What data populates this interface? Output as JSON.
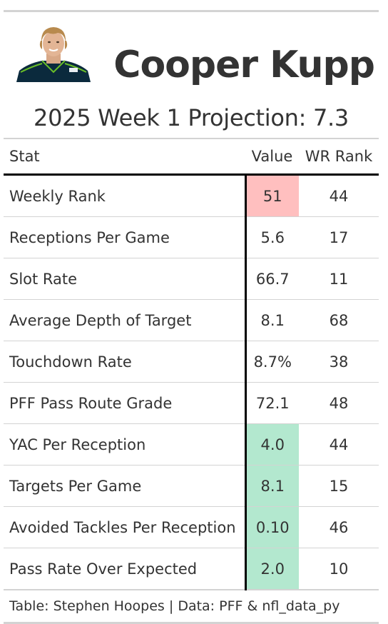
{
  "header": {
    "player_name": "Cooper Kupp",
    "headshot_icon": "player-headshot-icon",
    "subtitle": "2025 Week 1 Projection: 7.3"
  },
  "table": {
    "columns": [
      "Stat",
      "Value",
      "WR Rank"
    ],
    "rows": [
      {
        "stat": "Weekly Rank",
        "value": "51",
        "rank": "44",
        "highlight": "#ffbfbf"
      },
      {
        "stat": "Receptions Per Game",
        "value": "5.6",
        "rank": "17",
        "highlight": null
      },
      {
        "stat": "Slot Rate",
        "value": "66.7",
        "rank": "11",
        "highlight": null
      },
      {
        "stat": "Average Depth of Target",
        "value": "8.1",
        "rank": "68",
        "highlight": null
      },
      {
        "stat": "Touchdown Rate",
        "value": "8.7%",
        "rank": "38",
        "highlight": null
      },
      {
        "stat": "PFF Pass Route Grade",
        "value": "72.1",
        "rank": "48",
        "highlight": null
      },
      {
        "stat": "YAC Per Reception",
        "value": "4.0",
        "rank": "44",
        "highlight": "#b3e8cf"
      },
      {
        "stat": "Targets Per Game",
        "value": "8.1",
        "rank": "15",
        "highlight": "#b3e8cf"
      },
      {
        "stat": "Avoided Tackles Per Reception",
        "value": "0.10",
        "rank": "46",
        "highlight": "#b3e8cf"
      },
      {
        "stat": "Pass Rate Over Expected",
        "value": "2.0",
        "rank": "10",
        "highlight": "#b3e8cf"
      }
    ]
  },
  "footer": {
    "source": "Table: Stephen Hoopes | Data: PFF & nfl_data_py"
  }
}
